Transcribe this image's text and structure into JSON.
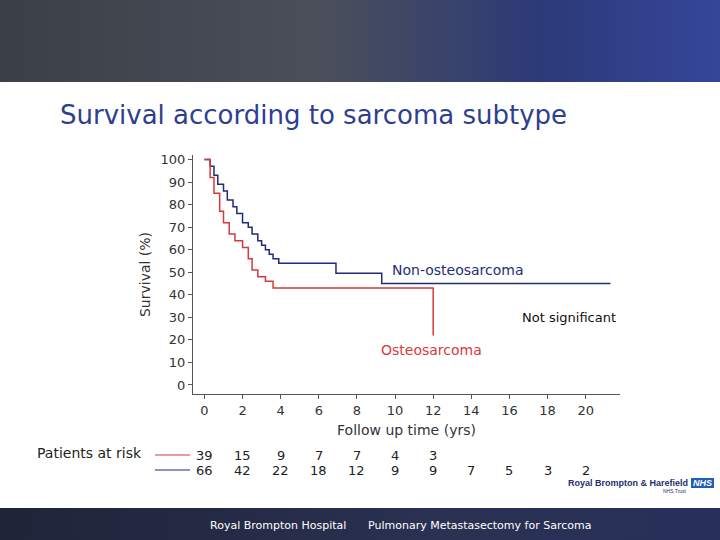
{
  "chart_data": {
    "type": "line",
    "title": "Survival according to sarcoma subtype",
    "x_label": "Follow up time (yrs)",
    "y_label": "Survival (%)",
    "xlim": [
      -0.6,
      21.8
    ],
    "ylim": [
      -4,
      102
    ],
    "xticks": [
      0,
      2,
      4,
      6,
      8,
      10,
      12,
      14,
      16,
      18,
      20
    ],
    "yticks": [
      0,
      10,
      20,
      30,
      40,
      50,
      60,
      70,
      80,
      90,
      100
    ],
    "grid": false,
    "line_style": "step",
    "series": [
      {
        "name": "Non-osteosarcoma",
        "color": "#1f2d7a",
        "x": [
          0,
          0.3,
          0.5,
          0.7,
          1.0,
          1.2,
          1.5,
          1.7,
          2.0,
          2.3,
          2.5,
          2.8,
          3.0,
          3.2,
          3.4,
          3.6,
          3.9,
          6.9,
          9.3,
          21.3
        ],
        "values": [
          100,
          97,
          93,
          89,
          86,
          82,
          79,
          76,
          72,
          70,
          67,
          64,
          62,
          60,
          58,
          56,
          54,
          49.5,
          45,
          45
        ],
        "label_x": 13.3,
        "label_y": 51,
        "at_risk_x": [
          0,
          2,
          4,
          6,
          8,
          10,
          12,
          14,
          16,
          18,
          20
        ],
        "at_risk": [
          66,
          42,
          22,
          18,
          12,
          9,
          9,
          7,
          5,
          3,
          2
        ]
      },
      {
        "name": "Osteosarcoma",
        "color": "#d63a3a",
        "x": [
          0,
          0.3,
          0.5,
          0.8,
          1.0,
          1.3,
          1.6,
          2.0,
          2.3,
          2.5,
          2.8,
          3.2,
          3.6,
          12
        ],
        "values": [
          100,
          92,
          85,
          77,
          72,
          67,
          64,
          61,
          56,
          51,
          48,
          46,
          43,
          22
        ],
        "label_x": 11.9,
        "label_y": 15.5,
        "at_risk_x": [
          0,
          2,
          4,
          6,
          8,
          10,
          12
        ],
        "at_risk": [
          39,
          15,
          9,
          7,
          7,
          4,
          3
        ]
      }
    ],
    "risk_label": "Patients at risk",
    "annotations": [
      {
        "text": "Not significant",
        "x": 19.1,
        "y": 30
      }
    ]
  },
  "footer": {
    "left": "Royal Brompton Hospital",
    "right": "Pulmonary Metastasectomy for Sarcoma"
  },
  "logo": {
    "text": "Royal Brompton & Harefield",
    "badge": "NHS",
    "sub": "NHS Trust"
  }
}
